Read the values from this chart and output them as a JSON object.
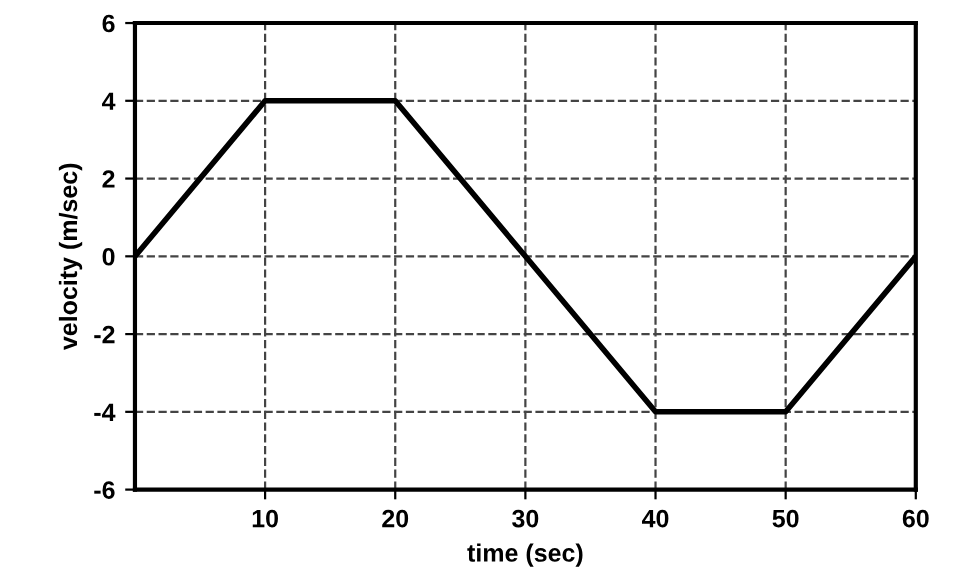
{
  "chart_data": {
    "type": "line",
    "xlabel": "time (sec)",
    "ylabel": "velocity (m/sec)",
    "x": [
      0,
      10,
      20,
      30,
      40,
      50,
      60
    ],
    "series": [
      {
        "color": "#000000",
        "values": [
          0,
          4,
          4,
          0,
          -4,
          -4,
          0
        ]
      }
    ],
    "xlim": [
      0,
      60
    ],
    "xticks": [
      10,
      20,
      30,
      40,
      50,
      60
    ],
    "ylim": [
      -6,
      6
    ],
    "yticks": [
      -6,
      -4,
      -2,
      0,
      2,
      4,
      6
    ],
    "grid": true,
    "marker": "none",
    "line_style": "solid"
  }
}
